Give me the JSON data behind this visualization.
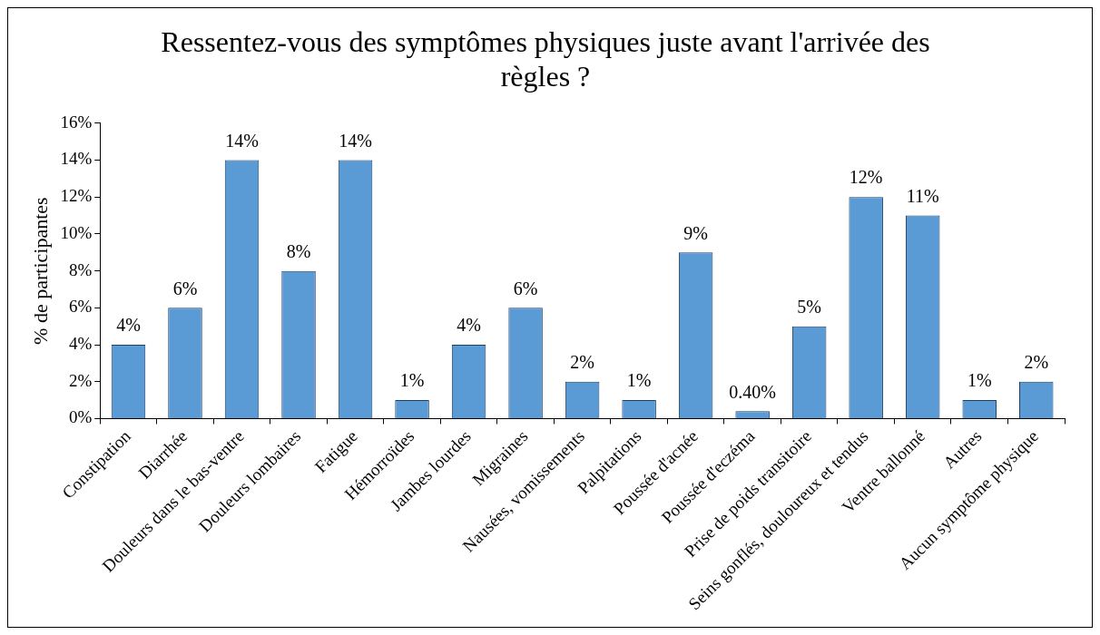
{
  "chart_data": {
    "type": "bar",
    "title": "Ressentez-vous des symptômes physiques juste avant l'arrivée des règles ?",
    "ylabel": "% de participantes",
    "categories": [
      "Constipation",
      "Diarrhée",
      "Douleurs dans le bas-ventre",
      "Douleurs lombaires",
      "Fatigue",
      "Hémorroïdes",
      "Jambes lourdes",
      "Migraines",
      "Nausées, vomissements",
      "Palpitations",
      "Poussée d'acnée",
      "Poussée d'eczéma",
      "Prise de poids transitoire",
      "Seins gonflés, douloureux et tendus",
      "Ventre ballonné",
      "Autres",
      "Aucun symptôme physique"
    ],
    "values": [
      4,
      6,
      14,
      8,
      14,
      1,
      4,
      6,
      2,
      1,
      9,
      0.4,
      5,
      12,
      11,
      1,
      2
    ],
    "value_labels": [
      "4%",
      "6%",
      "14%",
      "8%",
      "14%",
      "1%",
      "4%",
      "6%",
      "2%",
      "1%",
      "9%",
      "0.40%",
      "5%",
      "12%",
      "11%",
      "1%",
      "2%"
    ],
    "color": "#5b9bd5",
    "ylim": [
      0,
      16
    ],
    "yticks": [
      {
        "value": 0,
        "label": "0%"
      },
      {
        "value": 2,
        "label": "2%"
      },
      {
        "value": 4,
        "label": "4%"
      },
      {
        "value": 6,
        "label": "6%"
      },
      {
        "value": 8,
        "label": "8%"
      },
      {
        "value": 10,
        "label": "10%"
      },
      {
        "value": 12,
        "label": "12%"
      },
      {
        "value": 14,
        "label": "14%"
      },
      {
        "value": 16,
        "label": "16%"
      }
    ],
    "grid": false,
    "legend": false
  }
}
